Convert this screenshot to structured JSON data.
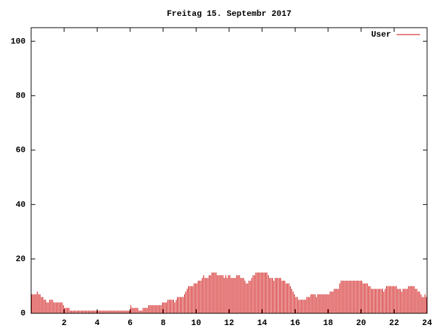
{
  "chart_data": {
    "type": "impulse",
    "title": "Freitag 15. Septembr 2017",
    "xlim": [
      0,
      24
    ],
    "xticks": [
      2,
      4,
      6,
      8,
      10,
      12,
      14,
      16,
      18,
      20,
      22,
      24
    ],
    "ylim": [
      0,
      105
    ],
    "yticks": [
      0,
      20,
      40,
      60,
      80,
      100
    ],
    "legend": "top-right",
    "series": [
      {
        "name": "User",
        "color": "#cc0000",
        "values": [
          7,
          7,
          7,
          7,
          8,
          7,
          7,
          6,
          6,
          5,
          5,
          4,
          4,
          5,
          5,
          5,
          4,
          4,
          4,
          4,
          4,
          4,
          4,
          3,
          2,
          2,
          2,
          2,
          1,
          1,
          1,
          1,
          1,
          1,
          1,
          1,
          1,
          1,
          1,
          1,
          1,
          1,
          1,
          1,
          1,
          1,
          1,
          1,
          1,
          1,
          1,
          1,
          1,
          1,
          1,
          1,
          1,
          1,
          1,
          1,
          1,
          1,
          1,
          1,
          1,
          1,
          1,
          1,
          1,
          1,
          1,
          1,
          3,
          2,
          2,
          2,
          2,
          2,
          1,
          1,
          1,
          2,
          2,
          2,
          2,
          3,
          3,
          3,
          3,
          3,
          3,
          3,
          3,
          3,
          3,
          4,
          4,
          4,
          4,
          5,
          5,
          5,
          5,
          5,
          4,
          5,
          6,
          6,
          6,
          6,
          6,
          7,
          8,
          9,
          10,
          10,
          10,
          10,
          11,
          11,
          11,
          12,
          12,
          12,
          13,
          14,
          13,
          13,
          13,
          14,
          14,
          15,
          15,
          15,
          15,
          14,
          14,
          14,
          14,
          14,
          13,
          14,
          13,
          14,
          14,
          13,
          13,
          13,
          13,
          14,
          14,
          14,
          13,
          13,
          13,
          12,
          11,
          11,
          12,
          12,
          13,
          14,
          14,
          15,
          15,
          15,
          15,
          15,
          15,
          15,
          15,
          15,
          14,
          13,
          13,
          13,
          12,
          13,
          13,
          13,
          13,
          13,
          12,
          12,
          12,
          11,
          11,
          11,
          10,
          9,
          8,
          7,
          6,
          6,
          5,
          5,
          5,
          5,
          5,
          5,
          6,
          6,
          6,
          7,
          7,
          7,
          7,
          6,
          7,
          7,
          7,
          7,
          7,
          7,
          7,
          7,
          7,
          8,
          8,
          8,
          9,
          9,
          9,
          9,
          11,
          12,
          12,
          12,
          12,
          12,
          12,
          12,
          12,
          12,
          12,
          12,
          12,
          12,
          12,
          12,
          12,
          11,
          11,
          11,
          11,
          10,
          10,
          9,
          9,
          9,
          9,
          9,
          9,
          9,
          9,
          9,
          8,
          9,
          10,
          10,
          10,
          10,
          10,
          10,
          10,
          10,
          9,
          9,
          9,
          8,
          9,
          9,
          9,
          9,
          10,
          10,
          10,
          10,
          10,
          9,
          9,
          8,
          8,
          7,
          6,
          6,
          7,
          6
        ]
      }
    ]
  }
}
